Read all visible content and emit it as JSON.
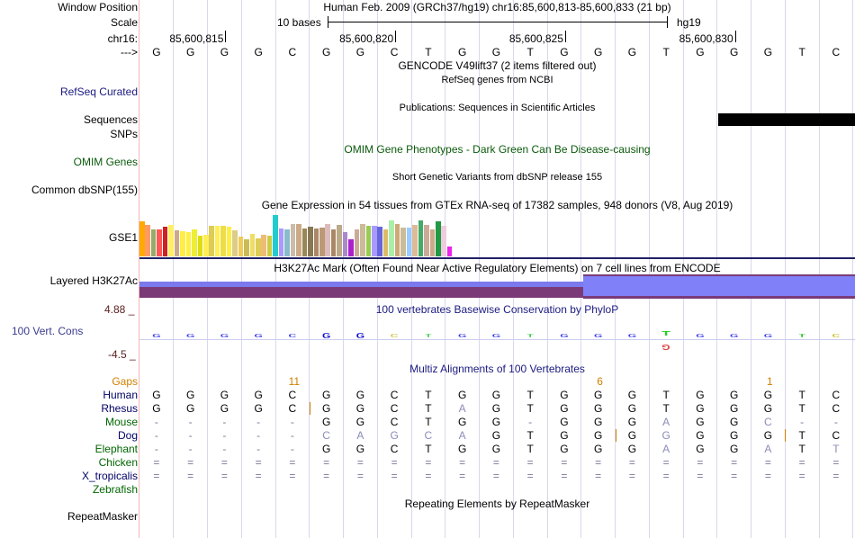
{
  "position": {
    "label": "Window Position",
    "text": "Human Feb. 2009 (GRCh37/hg19)   chr16:85,600,813-85,600,833 (21 bp)"
  },
  "scale": {
    "label": "Scale",
    "left_text": "10 bases",
    "right_text": "hg19"
  },
  "chrom": {
    "label": "chr16:",
    "positions": [
      "85,600,815",
      "85,600,820",
      "85,600,825",
      "85,600,830"
    ]
  },
  "bases": {
    "label": "--->",
    "seq": [
      "G",
      "G",
      "G",
      "G",
      "C",
      "G",
      "G",
      "C",
      "T",
      "G",
      "G",
      "T",
      "G",
      "G",
      "G",
      "T",
      "G",
      "G",
      "G",
      "T",
      "C"
    ]
  },
  "tracks": {
    "gencode_title": "GENCODE V49lift37 (2 items filtered out)",
    "refseq_title": "RefSeq genes from NCBI",
    "refseq_label": "RefSeq Curated",
    "pubs_title": "Publications: Sequences in Scientific Articles",
    "sequences_label": "Sequences",
    "snps_label": "SNPs",
    "omim_title": "OMIM Gene Phenotypes - Dark Green Can Be Disease-causing",
    "omim_label": "OMIM Genes",
    "dbsnp_title": "Short Genetic Variants from dbSNP release 155",
    "dbsnp_label": "Common dbSNP(155)",
    "gtex_title": "Gene Expression in 54 tissues from GTEx RNA-seq of 17382 samples, 948 donors (V8, Aug 2019)",
    "gtex_label": "GSE1",
    "h3k27_title": "H3K27Ac Mark (Often Found Near Active Regulatory Elements) on 7 cell lines from ENCODE",
    "h3k27_label": "Layered H3K27Ac",
    "phylop_title": "100 vertebrates Basewise Conservation by PhyloP",
    "phylop_label": "100 Vert. Cons",
    "phylop_max": "4.88 _",
    "phylop_min": "-4.5 _",
    "multiz_title": "Multiz Alignments of 100 Vertebrates",
    "repeat_title": "Repeating Elements by RepeatMasker",
    "repeat_label": "RepeatMasker"
  },
  "gtex_bars": {
    "values": [
      0.82,
      0.72,
      0.62,
      0.62,
      0.68,
      0.72,
      0.6,
      0.58,
      0.56,
      0.62,
      0.48,
      0.5,
      0.7,
      0.7,
      0.7,
      0.68,
      0.6,
      0.45,
      0.4,
      0.52,
      0.42,
      0.5,
      0.48,
      0.96,
      0.64,
      0.62,
      0.75,
      0.75,
      0.64,
      0.68,
      0.64,
      0.66,
      0.76,
      0.62,
      0.72,
      0.56,
      0.4,
      0.62,
      0.76,
      0.7,
      0.7,
      0.68,
      0.62,
      0.84,
      0.76,
      0.66,
      0.66,
      0.72,
      0.84,
      0.72,
      0.62,
      0.82,
      0.7,
      0.22
    ],
    "colors": [
      "#ffaa00",
      "#ff9966",
      "#99aa66",
      "#ff5555",
      "#cc2222",
      "#ffee66",
      "#ccaa88",
      "#ffee44",
      "#ffee44",
      "#eeee33",
      "#dddd11",
      "#ffee55",
      "#ddcc55",
      "#ffee55",
      "#eedd44",
      "#ffee44",
      "#ddcc88",
      "#eecc55",
      "#ccbb55",
      "#eedd66",
      "#ddcc55",
      "#eebb77",
      "#cccc44",
      "#22cccc",
      "#aa99ff",
      "#88bbcc",
      "#ccbbaa",
      "#ccaa88",
      "#998855",
      "#887755",
      "#aa8866",
      "#bb9977",
      "#ddbbbb",
      "#aa8866",
      "#bbaa88",
      "#aa88cc",
      "#aa22cc",
      "#ccaa99",
      "#ccbb99",
      "#99cc55",
      "#aa99ff",
      "#6666dd",
      "#ddbb66",
      "#aaeeaa",
      "#ccaa77",
      "#ccbb99",
      "#99ccff",
      "#ddbb99",
      "#44aa66",
      "#ccaa99",
      "#ccaa88",
      "#229944",
      "#eeccdd",
      "#ee22ee"
    ]
  },
  "phylop": {
    "top_glyphs": [
      "G",
      "G",
      "G",
      "G",
      "C",
      "G",
      "G",
      "C",
      "T",
      "G",
      "G",
      "T",
      "G",
      "G",
      "G",
      "T",
      "G",
      "G",
      "G",
      "T",
      "C"
    ],
    "bottom_glyphs": [
      "",
      "",
      "",
      "",
      "",
      "",
      "",
      "",
      "",
      "",
      "",
      "",
      "",
      "",
      "",
      "G",
      "",
      "",
      "",
      "",
      ""
    ],
    "colors": [
      "#3a3af0",
      "#3a3af0",
      "#3a3af0",
      "#3a3af0",
      "#3a3af0",
      "#1010d0",
      "#1010d0",
      "#d0c040",
      "#30d040",
      "#3a3af0",
      "#3a3af0",
      "#30d040",
      "#3a3af0",
      "#3a3af0",
      "#3a3af0",
      "#20d020",
      "#3a3af0",
      "#3a3af0",
      "#3a3af0",
      "#20c020",
      "#c8c020"
    ]
  },
  "multiz": {
    "gaps_label": "Gaps",
    "gap_numbers": [
      {
        "col": 4.5,
        "text": "11"
      },
      {
        "col": 13.5,
        "text": "6"
      },
      {
        "col": 18.5,
        "text": "1"
      }
    ],
    "species": [
      {
        "name": "Human",
        "color": "#000066",
        "row": [
          "G",
          "G",
          "G",
          "G",
          "C",
          "G",
          "G",
          "C",
          "T",
          "G",
          "G",
          "T",
          "G",
          "G",
          "G",
          "T",
          "G",
          "G",
          "G",
          "T",
          "C"
        ],
        "dim": []
      },
      {
        "name": "Rhesus",
        "color": "#000066",
        "row": [
          "G",
          "G",
          "G",
          "G",
          "C",
          "G",
          "G",
          "C",
          "T",
          "A",
          "G",
          "T",
          "G",
          "G",
          "G",
          "T",
          "G",
          "G",
          "G",
          "T",
          "C"
        ],
        "dim": [
          9
        ]
      },
      {
        "name": "Mouse",
        "color": "#006600",
        "row": [
          "-",
          "-",
          "-",
          "-",
          "-",
          "G",
          "G",
          "C",
          "T",
          "G",
          "G",
          "-",
          "G",
          "G",
          "G",
          "A",
          "G",
          "G",
          "C",
          "-",
          "-"
        ],
        "dim": [
          15,
          18
        ]
      },
      {
        "name": "Dog",
        "color": "#000066",
        "row": [
          "-",
          "-",
          "-",
          "-",
          "-",
          "C",
          "A",
          "G",
          "C",
          "A",
          "G",
          "T",
          "G",
          "G",
          "G",
          "G",
          "G",
          "G",
          "G",
          "T",
          "C"
        ],
        "dim": [
          5,
          6,
          7,
          8,
          9,
          15
        ]
      },
      {
        "name": "Elephant",
        "color": "#006600",
        "row": [
          "-",
          "-",
          "-",
          "-",
          "-",
          "G",
          "G",
          "C",
          "T",
          "G",
          "G",
          "T",
          "G",
          "G",
          "G",
          "A",
          "G",
          "G",
          "A",
          "T",
          "T"
        ],
        "dim": [
          15,
          18,
          20
        ]
      },
      {
        "name": "Chicken",
        "color": "#006600",
        "row": [
          "=",
          "=",
          "=",
          "=",
          "=",
          "=",
          "=",
          "=",
          "=",
          "=",
          "=",
          "=",
          "=",
          "=",
          "=",
          "=",
          "=",
          "=",
          "=",
          "=",
          "="
        ],
        "dim": []
      },
      {
        "name": "X_tropicalis",
        "color": "#000066",
        "row": [
          "=",
          "=",
          "=",
          "=",
          "=",
          "=",
          "=",
          "=",
          "=",
          "=",
          "=",
          "=",
          "=",
          "=",
          "=",
          "=",
          "=",
          "=",
          "=",
          "=",
          "="
        ],
        "dim": []
      },
      {
        "name": "Zebrafish",
        "color": "#006600",
        "row": [],
        "dim": []
      }
    ]
  }
}
